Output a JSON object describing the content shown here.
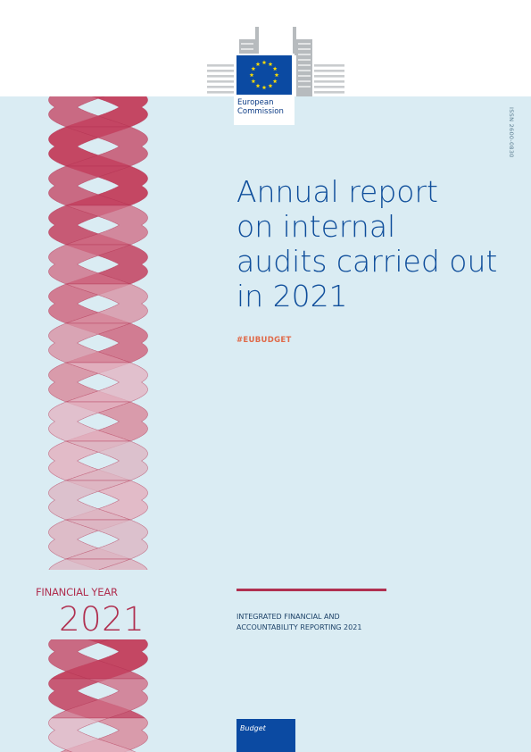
{
  "logo": {
    "line1": "European",
    "line2": "Commission"
  },
  "isbn": "ISSN 2600-0830",
  "title_lines": [
    "Annual report",
    "on internal",
    "audits carried out",
    "in 2021"
  ],
  "hashtag": "#EUBUDGET",
  "financial_year": {
    "label": "FINANCIAL YEAR",
    "year": "2021"
  },
  "reporting": {
    "line1": "INTEGRATED FINANCIAL AND",
    "line2": "ACCOUNTABILITY REPORTING 2021"
  },
  "budget_label": "Budget",
  "colors": {
    "background": "#daecf3",
    "title_blue": "#0f4e9b",
    "eu_blue": "#0b4aa2",
    "eu_yellow": "#ffdd00",
    "accent_red": "#b03050",
    "hashtag_orange": "#e06a49"
  },
  "icons": [
    "berlaymont-building-icon",
    "eu-flag-icon",
    "ribbon-helix-graphic"
  ]
}
